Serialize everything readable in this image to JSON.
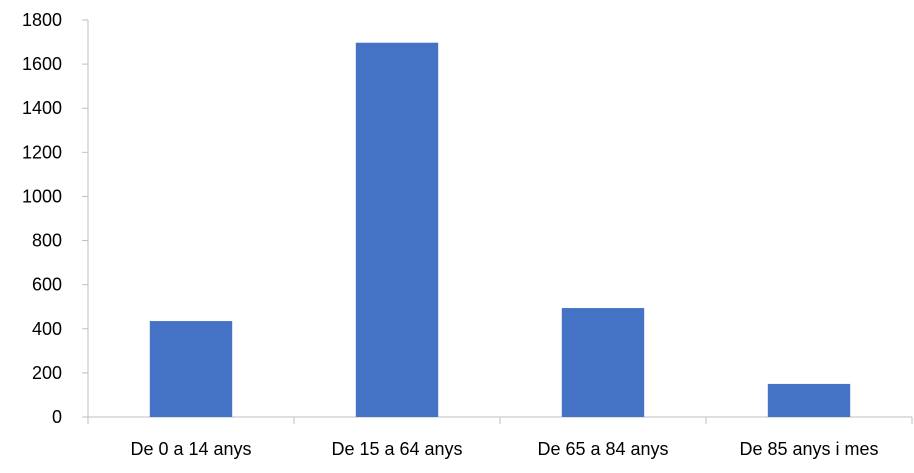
{
  "chart_data": {
    "type": "bar",
    "title": "",
    "xlabel": "",
    "ylabel": "",
    "categories": [
      "De 0 a 14 anys",
      "De 15 a 64 anys",
      "De 65 a 84 anys",
      "De 85 anys i mes"
    ],
    "values": [
      435,
      1697,
      494,
      150
    ],
    "ylim": [
      0,
      1800
    ],
    "yticks": [
      0,
      200,
      400,
      600,
      800,
      1000,
      1200,
      1400,
      1600,
      1800
    ],
    "grid": false,
    "legend": "none",
    "bar_color": "#4472C4",
    "axis_color": "#BFBFBF"
  }
}
